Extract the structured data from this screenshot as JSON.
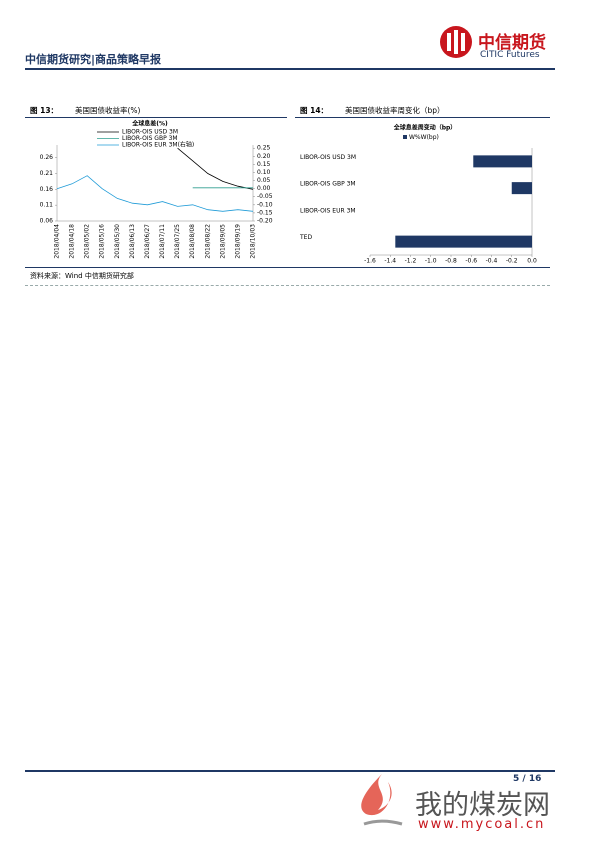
{
  "header": {
    "title": "中信期货研究|商品策略早报",
    "logo_cn": "中信期货",
    "logo_en": "CITIC Futures"
  },
  "figures": [
    {
      "number": "图 13：",
      "title": "美国国债收益率(%)"
    },
    {
      "number": "图 14：",
      "title": "美国国债收益率周变化（bp）"
    }
  ],
  "source": "资料来源：Wind  中信期货研究部",
  "footer": {
    "page": "5 / 16"
  },
  "watermark": {
    "name": "我的煤炭网",
    "url": "www.mycoal.cn"
  },
  "chart_data": [
    {
      "type": "line",
      "title": "全球息差(%)",
      "categories": [
        "2018/04/04",
        "2018/04/18",
        "2018/05/02",
        "2018/05/16",
        "2018/05/30",
        "2018/06/13",
        "2018/06/27",
        "2018/07/11",
        "2018/07/25",
        "2018/08/08",
        "2018/08/22",
        "2018/09/05",
        "2018/09/19",
        "2018/10/03"
      ],
      "series": [
        {
          "name": "LIBOR-OIS USD 3M",
          "color": "#000000",
          "values": [
            null,
            null,
            null,
            null,
            null,
            null,
            null,
            null,
            0.29,
            0.25,
            0.21,
            0.185,
            0.17,
            0.16
          ]
        },
        {
          "name": "LIBOR-OIS GBP 3M",
          "color": "#2e9e8f",
          "values": [
            null,
            null,
            null,
            null,
            null,
            null,
            null,
            null,
            null,
            0.165,
            0.165,
            0.165,
            0.165,
            0.165
          ]
        },
        {
          "name": "LIBOR-OIS EUR 3M(右轴)",
          "color": "#1f9bd7",
          "axis": "y2",
          "values": [
            0.0,
            0.03,
            0.08,
            0.0,
            -0.06,
            -0.09,
            -0.1,
            -0.08,
            -0.11,
            -0.1,
            -0.13,
            -0.14,
            -0.13,
            -0.14
          ]
        }
      ],
      "ylim": [
        0.06,
        0.3
      ],
      "yticks": [
        0.06,
        0.11,
        0.16,
        0.21,
        0.26
      ],
      "y2lim": [
        -0.2,
        0.27
      ],
      "y2ticks": [
        {
          "value": -0.2,
          "label": "-0.20"
        },
        {
          "value": -0.15,
          "label": "-0.15"
        },
        {
          "value": -0.1,
          "label": "-0.10"
        },
        {
          "value": -0.05,
          "label": "-0.05"
        },
        {
          "value": 0,
          "label": "0.00"
        },
        {
          "value": 0.05,
          "label": "0.05"
        },
        {
          "value": 0.1,
          "label": "0.10"
        },
        {
          "value": 0.15,
          "label": "0.15"
        },
        {
          "value": 0.2,
          "label": "0.20"
        },
        {
          "value": 0.25,
          "label": "0.25"
        }
      ]
    },
    {
      "type": "hbar",
      "title": "全球息差周变动（bp）",
      "categories": [
        "LIBOR-OIS USD 3M",
        "LIBOR-OIS GBP 3M",
        "LIBOR-OIS EUR 3M",
        "TED"
      ],
      "series": [
        {
          "name": "W%W(bp)",
          "color": "#1f3864",
          "values": [
            -0.58,
            -0.2,
            0,
            -1.35
          ]
        }
      ],
      "xlim": [
        -1.6,
        0
      ],
      "xticks": [
        -1.6,
        -1.4,
        -1.2,
        {
          "value": -1,
          "label": "-1.0"
        },
        -0.8,
        -0.6,
        -0.4,
        -0.2,
        {
          "value": 0,
          "label": "0.0"
        }
      ]
    }
  ]
}
